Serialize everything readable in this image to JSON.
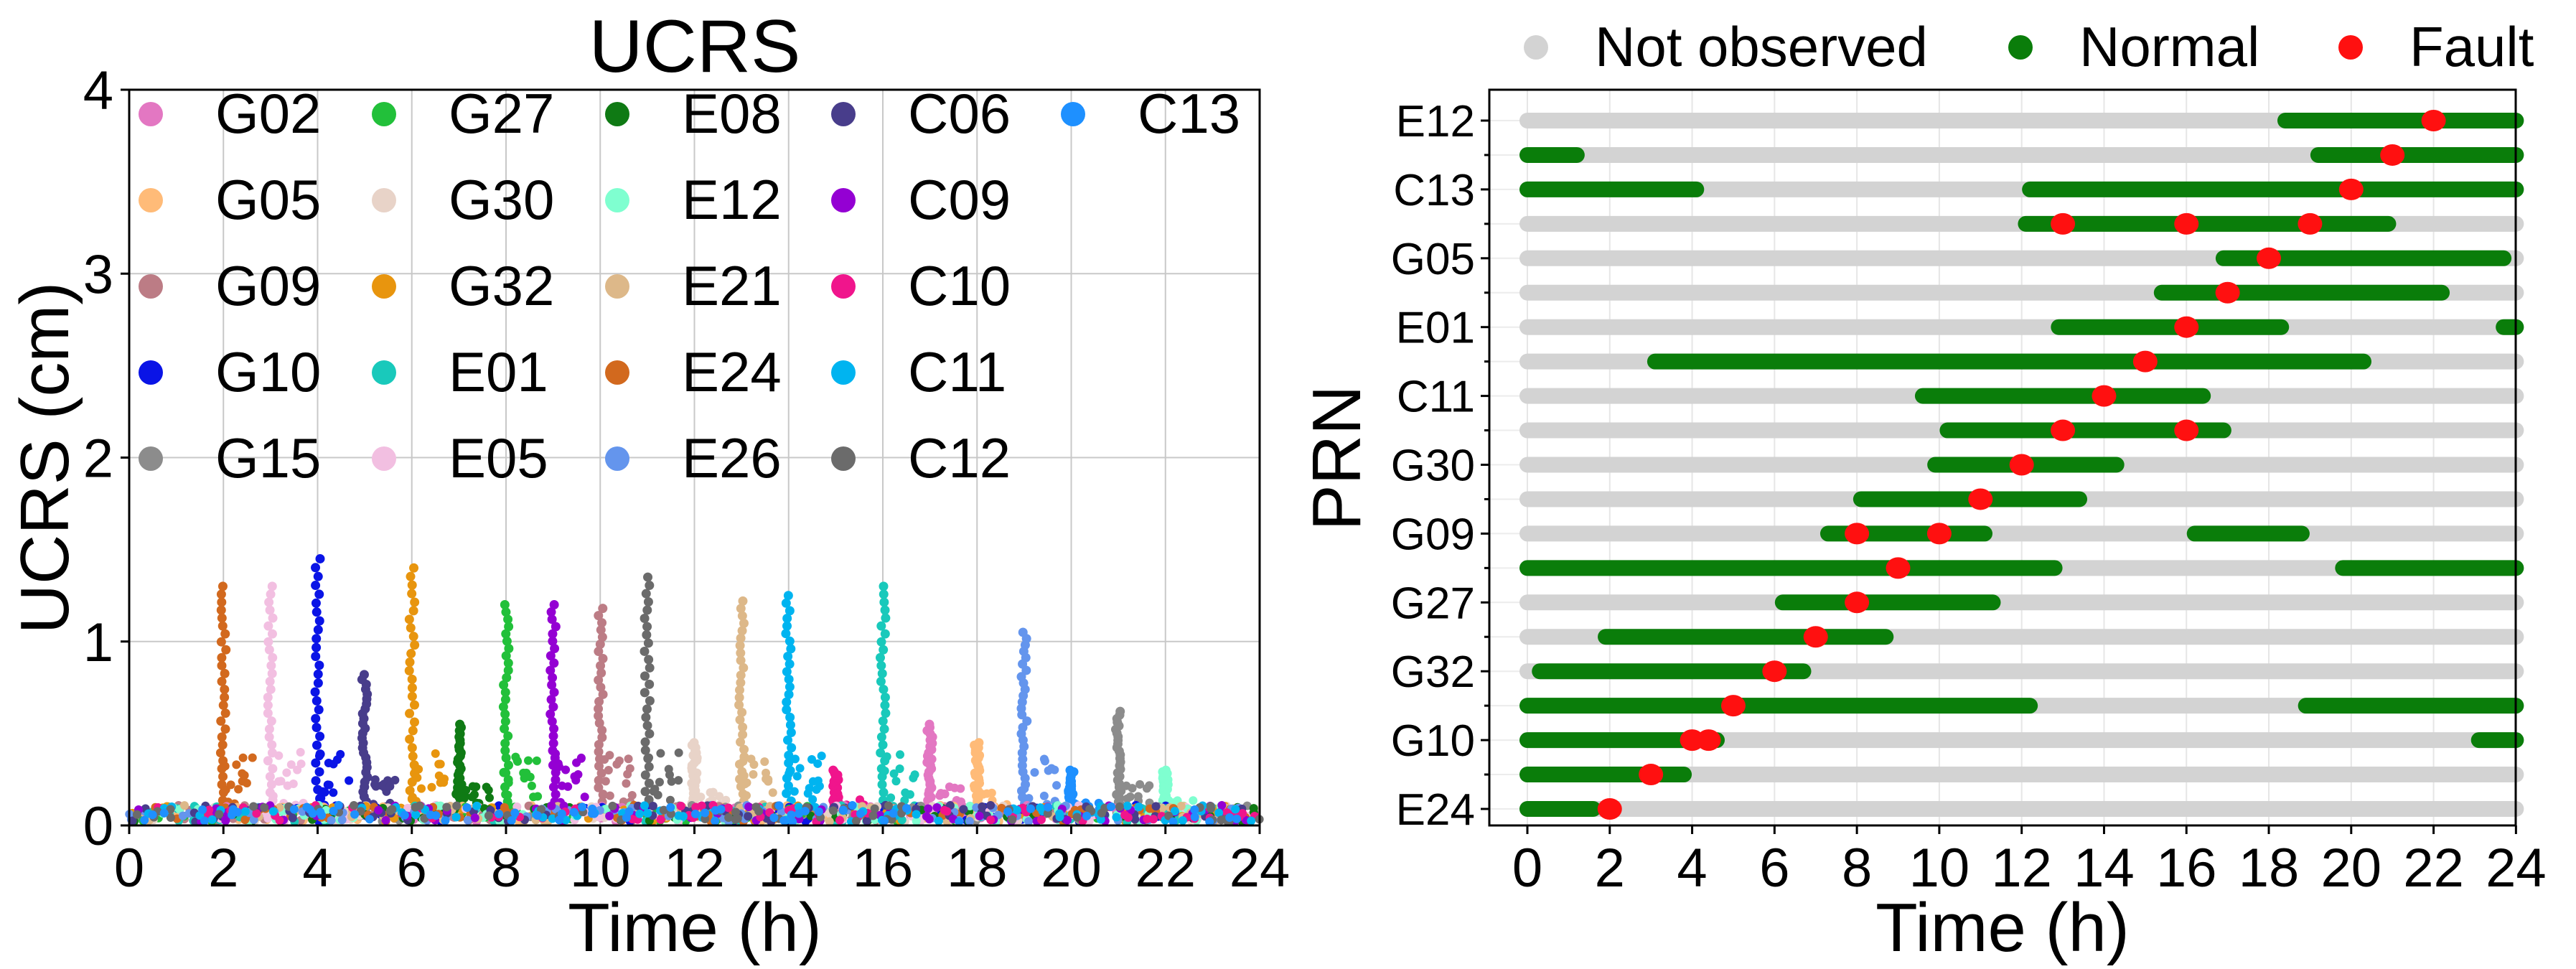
{
  "chart_data": [
    {
      "type": "scatter",
      "title": "UCRS",
      "xlabel": "Time (h)",
      "ylabel": "UCRS (cm)",
      "xlim": [
        0,
        24
      ],
      "ylim": [
        0,
        4
      ],
      "xticks": [
        "0",
        "2",
        "4",
        "6",
        "8",
        "10",
        "12",
        "14",
        "16",
        "18",
        "20",
        "22",
        "24"
      ],
      "yticks": [
        "0",
        "1",
        "2",
        "3",
        "4"
      ],
      "grid": true,
      "legend_position": "top-left, inside, 5 columns",
      "series": [
        {
          "name": "G02",
          "color": "#e377c2",
          "spike_time": 17.0,
          "spike_peak": 0.55
        },
        {
          "name": "G05",
          "color": "#ffbb78",
          "spike_time": 18.0,
          "spike_peak": 0.45
        },
        {
          "name": "G09",
          "color": "#bc7c85",
          "spike_time": 10.0,
          "spike_peak": 1.18
        },
        {
          "name": "G10",
          "color": "#0a14e6",
          "spike_time": 4.0,
          "spike_peak": 1.45
        },
        {
          "name": "G15",
          "color": "#8c8c8c",
          "spike_time": 21.0,
          "spike_peak": 0.62
        },
        {
          "name": "G27",
          "color": "#22c03a",
          "spike_time": 8.0,
          "spike_peak": 1.2
        },
        {
          "name": "G30",
          "color": "#e8d3c8",
          "spike_time": 12.0,
          "spike_peak": 0.45
        },
        {
          "name": "G32",
          "color": "#e8950e",
          "spike_time": 6.0,
          "spike_peak": 1.4
        },
        {
          "name": "E01",
          "color": "#19c9bb",
          "spike_time": 16.0,
          "spike_peak": 1.3
        },
        {
          "name": "E05",
          "color": "#f2bfe1",
          "spike_time": 3.0,
          "spike_peak": 1.3
        },
        {
          "name": "E08",
          "color": "#0f7a14",
          "spike_time": 7.0,
          "spike_peak": 0.55
        },
        {
          "name": "E12",
          "color": "#7fffd0",
          "spike_time": 22.0,
          "spike_peak": 0.3
        },
        {
          "name": "E21",
          "color": "#ddb889",
          "spike_time": 13.0,
          "spike_peak": 1.22
        },
        {
          "name": "E24",
          "color": "#d2691e",
          "spike_time": 2.0,
          "spike_peak": 1.3
        },
        {
          "name": "E26",
          "color": "#6495ed",
          "spike_time": 19.0,
          "spike_peak": 1.05
        },
        {
          "name": "C06",
          "color": "#483d8b",
          "spike_time": 5.0,
          "spike_peak": 0.82
        },
        {
          "name": "C09",
          "color": "#9400d3",
          "spike_time": 9.0,
          "spike_peak": 1.2
        },
        {
          "name": "C10",
          "color": "#f0158c",
          "spike_time": 15.0,
          "spike_peak": 0.3
        },
        {
          "name": "C11",
          "color": "#00b4f0",
          "spike_time": 14.0,
          "spike_peak": 1.25
        },
        {
          "name": "C12",
          "color": "#6b6b6b",
          "spike_time": 11.0,
          "spike_peak": 1.35
        },
        {
          "name": "C13",
          "color": "#1e90ff",
          "spike_time": 20.0,
          "spike_peak": 0.3
        }
      ]
    },
    {
      "type": "timeline",
      "title": "",
      "xlabel": "Time (h)",
      "ylabel": "PRN",
      "xlim": [
        0,
        24
      ],
      "xticks": [
        "0",
        "2",
        "4",
        "6",
        "8",
        "10",
        "12",
        "14",
        "16",
        "18",
        "20",
        "22",
        "24"
      ],
      "ytick_labels": [
        "E24",
        "G10",
        "G32",
        "G27",
        "G09",
        "G30",
        "C11",
        "E01",
        "G05",
        "C13",
        "E12"
      ],
      "grid": true,
      "legend_position": "top, above plot",
      "legend": [
        {
          "label": "Not observed",
          "color": "#d3d3d3"
        },
        {
          "label": "Normal",
          "color": "#0a7d0a"
        },
        {
          "label": "Fault",
          "color": "#ff1010"
        }
      ],
      "rows": [
        {
          "prn": "E24",
          "normal": [
            [
              0,
              1.6
            ]
          ],
          "faults": [
            2
          ]
        },
        {
          "prn": "",
          "normal": [
            [
              0,
              3.8
            ]
          ],
          "faults": [
            3
          ]
        },
        {
          "prn": "G10",
          "normal": [
            [
              0,
              4.6
            ],
            [
              23.1,
              24
            ]
          ],
          "faults": [
            4,
            4.4
          ]
        },
        {
          "prn": "",
          "normal": [
            [
              0,
              12.2
            ],
            [
              18.9,
              24
            ]
          ],
          "faults": [
            5
          ]
        },
        {
          "prn": "G32",
          "normal": [
            [
              0.3,
              6.7
            ]
          ],
          "faults": [
            6
          ]
        },
        {
          "prn": "",
          "normal": [
            [
              1.9,
              8.7
            ]
          ],
          "faults": [
            7
          ]
        },
        {
          "prn": "G27",
          "normal": [
            [
              6.2,
              11.3
            ]
          ],
          "faults": [
            8
          ]
        },
        {
          "prn": "",
          "normal": [
            [
              0,
              12.8
            ],
            [
              19.8,
              24
            ]
          ],
          "faults": [
            9
          ]
        },
        {
          "prn": "G09",
          "normal": [
            [
              7.3,
              11.1
            ],
            [
              16.2,
              18.8
            ]
          ],
          "faults": [
            8,
            10
          ]
        },
        {
          "prn": "",
          "normal": [
            [
              8.1,
              13.4
            ]
          ],
          "faults": [
            11
          ]
        },
        {
          "prn": "G30",
          "normal": [
            [
              9.9,
              14.3
            ]
          ],
          "faults": [
            12
          ]
        },
        {
          "prn": "",
          "normal": [
            [
              10.2,
              16.9
            ]
          ],
          "faults": [
            13,
            16
          ]
        },
        {
          "prn": "C11",
          "normal": [
            [
              9.6,
              16.4
            ]
          ],
          "faults": [
            14
          ]
        },
        {
          "prn": "",
          "normal": [
            [
              3.1,
              20.3
            ]
          ],
          "faults": [
            15
          ]
        },
        {
          "prn": "E01",
          "normal": [
            [
              12.9,
              18.3
            ],
            [
              23.7,
              24
            ]
          ],
          "faults": [
            16
          ]
        },
        {
          "prn": "",
          "normal": [
            [
              15.4,
              22.2
            ]
          ],
          "faults": [
            17
          ]
        },
        {
          "prn": "G05",
          "normal": [
            [
              16.9,
              23.7
            ]
          ],
          "faults": [
            18
          ]
        },
        {
          "prn": "",
          "normal": [
            [
              12.1,
              20.9
            ]
          ],
          "faults": [
            13,
            16,
            19
          ]
        },
        {
          "prn": "C13",
          "normal": [
            [
              0,
              4.1
            ],
            [
              12.2,
              24
            ]
          ],
          "faults": [
            20
          ]
        },
        {
          "prn": "",
          "normal": [
            [
              0,
              1.2
            ],
            [
              19.2,
              24
            ]
          ],
          "faults": [
            21
          ]
        },
        {
          "prn": "E12",
          "normal": [
            [
              18.4,
              24
            ]
          ],
          "faults": [
            22
          ]
        }
      ]
    }
  ]
}
